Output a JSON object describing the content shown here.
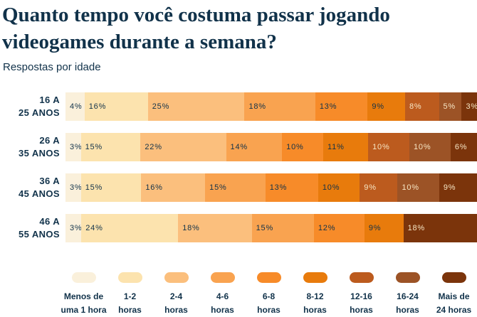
{
  "title_lines": [
    "Quanto tempo você costuma passar jogando",
    "videogames durante a semana?"
  ],
  "subtitle": "Respostas por idade",
  "colors": {
    "background": "#FFFFFF",
    "text_dark": "#11324A",
    "text_light": "#F7E6C4"
  },
  "chart_data": {
    "type": "bar",
    "variant": "horizontal-stacked-100",
    "title": "Quanto tempo você costuma passar jogando videogames durante a semana?",
    "subtitle": "Respostas por idade",
    "unit": "%",
    "legend_position": "bottom",
    "categories": [
      "Menos de uma 1 hora",
      "1-2 horas",
      "2-4 horas",
      "4-6 horas",
      "6-8 horas",
      "8-12 horas",
      "12-16 horas",
      "16-24 horas",
      "Mais de 24 horas"
    ],
    "palette": [
      "#FAF0DB",
      "#FCE3AE",
      "#FBBF7D",
      "#F9A350",
      "#F78B29",
      "#E87B0C",
      "#BC5B1E",
      "#9C5326",
      "#7B340B"
    ],
    "light_label_from_index": 6,
    "rows": [
      {
        "label": "16 a 25 anos",
        "label_lines": [
          "16 A",
          "25 ANOS"
        ],
        "values": [
          4,
          16,
          25,
          18,
          13,
          9,
          8,
          5,
          3
        ]
      },
      {
        "label": "26 a 35 anos",
        "label_lines": [
          "26 A",
          "35 ANOS"
        ],
        "values": [
          3,
          15,
          22,
          14,
          10,
          11,
          10,
          10,
          6
        ]
      },
      {
        "label": "36 a 45 anos",
        "label_lines": [
          "36 A",
          "45 ANOS"
        ],
        "values": [
          3,
          15,
          16,
          15,
          13,
          10,
          9,
          10,
          9
        ]
      },
      {
        "label": "46 a 55 anos",
        "label_lines": [
          "46 A",
          "55 ANOS"
        ],
        "values": [
          3,
          24,
          18,
          15,
          12,
          9,
          0,
          0,
          18
        ]
      }
    ],
    "legend": [
      {
        "lines": [
          "Menos de",
          "uma 1 hora"
        ]
      },
      {
        "lines": [
          "1-2",
          "horas"
        ]
      },
      {
        "lines": [
          "2-4",
          "horas"
        ]
      },
      {
        "lines": [
          "4-6",
          "horas"
        ]
      },
      {
        "lines": [
          "6-8",
          "horas"
        ]
      },
      {
        "lines": [
          "8-12",
          "horas"
        ]
      },
      {
        "lines": [
          "12-16",
          "horas"
        ]
      },
      {
        "lines": [
          "16-24",
          "horas"
        ]
      },
      {
        "lines": [
          "Mais de",
          "24 horas"
        ]
      }
    ]
  }
}
